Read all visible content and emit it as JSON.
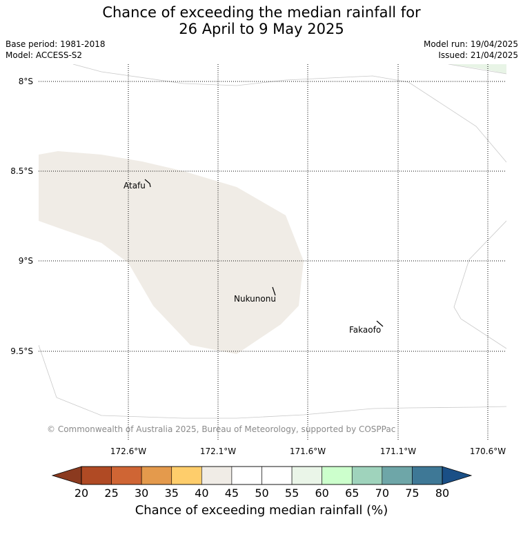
{
  "title": {
    "line1": "Chance of exceeding the median rainfall for",
    "line2": "26 April to 9 May 2025"
  },
  "meta": {
    "base_period": "Base period: 1981-2018",
    "model": "Model: ACCESS-S2",
    "model_run": "Model run: 19/04/2025",
    "issued": "Issued: 21/04/2025"
  },
  "map": {
    "latitude_labels": [
      "8°S",
      "8.5°S",
      "9°S",
      "9.5°S"
    ],
    "longitude_labels": [
      "172.6°W",
      "172.1°W",
      "171.6°W",
      "171.1°W",
      "170.6°W"
    ],
    "places": [
      "Atafu",
      "Nukunonu",
      "Fakaofo"
    ],
    "copyright": "© Commonwealth of Australia 2025, Bureau of Meteorology, supported by COSPPac"
  },
  "colorbar": {
    "title": "Chance of exceeding median rainfall (%)",
    "ticks": [
      "20",
      "25",
      "30",
      "35",
      "40",
      "45",
      "50",
      "55",
      "60",
      "65",
      "70",
      "75",
      "80"
    ],
    "low_extend_color": "#8b3a1f",
    "high_extend_color": "#1a4f86",
    "colors": [
      "#b04a24",
      "#cf6534",
      "#e49a4c",
      "#fecd6b",
      "#f0ece6",
      "#ffffff",
      "#ffffff",
      "#eaf5e8",
      "#ccffcc",
      "#9fd3bc",
      "#6ea6a8",
      "#3e7896"
    ],
    "land_fill": "#f0ece6",
    "corner_fill": "#e8f4e6"
  }
}
